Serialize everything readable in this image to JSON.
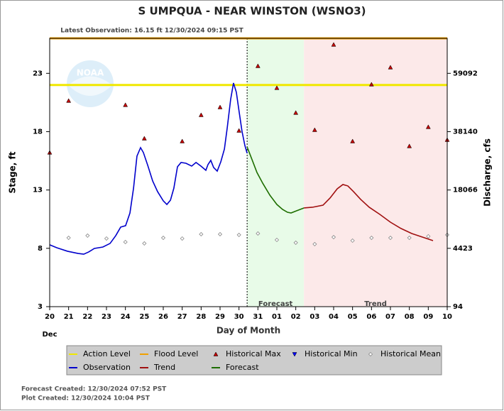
{
  "chart_data": {
    "type": "hydrograph",
    "title": "S UMPQUA - NEAR WINSTON  (WSNO3)",
    "subtitle": "Latest Observation: 16.15 ft 12/30/2024 09:15 PST",
    "ylabel": "Stage, ft",
    "y2label": "Discharge, cfs",
    "xlabel": "Day of Month",
    "month_label": "Dec",
    "xlim": [
      0,
      21
    ],
    "xticks": [
      {
        "value": 0,
        "label": "20"
      },
      {
        "value": 1,
        "label": "21"
      },
      {
        "value": 2,
        "label": "22"
      },
      {
        "value": 3,
        "label": "23"
      },
      {
        "value": 4,
        "label": "24"
      },
      {
        "value": 5,
        "label": "25"
      },
      {
        "value": 6,
        "label": "26"
      },
      {
        "value": 7,
        "label": "27"
      },
      {
        "value": 8,
        "label": "28"
      },
      {
        "value": 9,
        "label": "29"
      },
      {
        "value": 10,
        "label": "30"
      },
      {
        "value": 11,
        "label": "31"
      },
      {
        "value": 12,
        "label": "01"
      },
      {
        "value": 13,
        "label": "02"
      },
      {
        "value": 14,
        "label": "03"
      },
      {
        "value": 15,
        "label": "04"
      },
      {
        "value": 16,
        "label": "05"
      },
      {
        "value": 17,
        "label": "06"
      },
      {
        "value": 18,
        "label": "07"
      },
      {
        "value": 19,
        "label": "08"
      },
      {
        "value": 20,
        "label": "09"
      },
      {
        "value": 21,
        "label": "10"
      }
    ],
    "ylim": [
      3,
      26
    ],
    "yticks": [
      3,
      8,
      13,
      18,
      23
    ],
    "y2scale": "rating",
    "y2ticks": [
      94,
      4423,
      18066,
      38140,
      59092
    ],
    "regions": [
      {
        "name": "Forecast",
        "start": 10.43,
        "end": 13.43,
        "color": "#e8fbe8"
      },
      {
        "name": "Trend",
        "start": 13.43,
        "end": 21,
        "color": "#fce9e9"
      }
    ],
    "thresholds": [
      {
        "name": "Action Level",
        "value": 22,
        "color": "#f0e800"
      },
      {
        "name": "Flood Level",
        "value": 26,
        "color": "#f0a000"
      }
    ],
    "series": [
      {
        "name": "Historical Max",
        "kind": "marker",
        "marker": "triangle-up",
        "color": "#c00000",
        "x": [
          0,
          1,
          2,
          3,
          4,
          5,
          6,
          7,
          8,
          9,
          10,
          11,
          12,
          13,
          14,
          15,
          16,
          17,
          18,
          19,
          20,
          21
        ],
        "values": [
          16.21,
          20.65,
          null,
          null,
          20.29,
          17.42,
          null,
          17.18,
          19.43,
          20.1,
          18.09,
          23.63,
          21.75,
          19.62,
          18.15,
          25.46,
          17.18,
          22.05,
          23.51,
          16.76,
          18.4,
          17.3
        ]
      },
      {
        "name": "Historical Min",
        "kind": "marker",
        "marker": "triangle-down",
        "color": "#0000ff",
        "x": [],
        "values": []
      },
      {
        "name": "Historical Mean",
        "kind": "marker",
        "marker": "diamond",
        "color": "#888888",
        "x": [
          0,
          1,
          2,
          3,
          4,
          5,
          6,
          7,
          8,
          9,
          10,
          11,
          12,
          13,
          14,
          15,
          16,
          17,
          18,
          19,
          20,
          21
        ],
        "values": [
          null,
          8.9,
          9.09,
          8.84,
          8.54,
          8.42,
          8.9,
          8.84,
          9.21,
          9.21,
          9.15,
          9.27,
          8.72,
          8.48,
          8.36,
          8.96,
          8.66,
          8.9,
          8.9,
          8.9,
          9.03,
          9.15
        ]
      },
      {
        "name": "Observation",
        "kind": "line",
        "color": "#0000cc",
        "x": [
          0,
          0.375,
          0.94,
          1.5,
          1.8,
          2.06,
          2.36,
          2.81,
          3.19,
          3.49,
          3.75,
          4.01,
          4.24,
          4.43,
          4.61,
          4.8,
          4.95,
          5.18,
          5.44,
          5.7,
          6.0,
          6.19,
          6.38,
          6.56,
          6.75,
          6.94,
          7.2,
          7.5,
          7.73,
          7.99,
          8.25,
          8.36,
          8.51,
          8.66,
          8.85,
          9.04,
          9.23,
          9.38,
          9.56,
          9.71,
          9.86,
          10.01,
          10.16,
          10.31,
          10.43
        ],
        "values": [
          8.3,
          8.05,
          7.75,
          7.56,
          7.5,
          7.69,
          7.99,
          8.11,
          8.42,
          9.09,
          9.82,
          9.94,
          11.03,
          13.16,
          15.9,
          16.63,
          16.21,
          15.11,
          13.77,
          12.86,
          12.07,
          11.76,
          12.13,
          13.16,
          14.99,
          15.36,
          15.29,
          15.05,
          15.36,
          15.05,
          14.69,
          15.17,
          15.54,
          14.93,
          14.62,
          15.42,
          16.51,
          18.34,
          20.77,
          22.17,
          21.38,
          19.68,
          18.03,
          16.82,
          16.15
        ]
      },
      {
        "name": "Trend",
        "kind": "line",
        "color": "#a01010",
        "x": [
          13.43,
          13.88,
          14.44,
          14.81,
          15.19,
          15.49,
          15.75,
          16.05,
          16.43,
          16.88,
          17.44,
          18.0,
          18.56,
          19.13,
          19.69,
          20.25
        ],
        "values": [
          11.46,
          11.52,
          11.7,
          12.31,
          13.1,
          13.47,
          13.35,
          12.86,
          12.19,
          11.52,
          10.91,
          10.24,
          9.7,
          9.27,
          8.96,
          8.66
        ]
      },
      {
        "name": "Forecast",
        "kind": "line",
        "color": "#1e6e00",
        "x": [
          10.43,
          10.69,
          10.95,
          11.25,
          11.63,
          12.0,
          12.3,
          12.56,
          12.75,
          13.05,
          13.43
        ],
        "values": [
          16.69,
          15.6,
          14.5,
          13.59,
          12.56,
          11.76,
          11.34,
          11.09,
          11.03,
          11.22,
          11.46
        ]
      }
    ],
    "legend_order": [
      "Action Level",
      "Flood Level",
      "Historical Max",
      "Historical Min",
      "Historical Mean",
      "Observation",
      "Trend",
      "Forecast"
    ],
    "footer": [
      "Forecast Created: 12/30/2024 07:52 PST",
      "Plot Created: 12/30/2024 10:04 PST"
    ]
  }
}
